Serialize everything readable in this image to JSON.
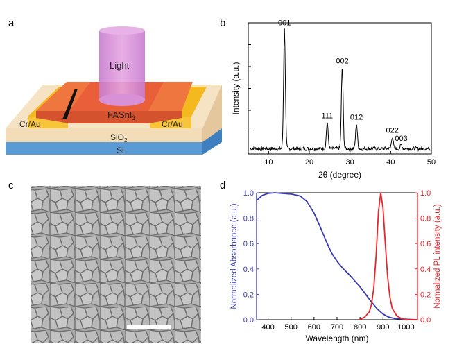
{
  "panels": {
    "a": {
      "label": "a",
      "light": "Light",
      "material_main": "FASnI",
      "material_sub": "3",
      "contact_left": "Cr/Au",
      "contact_right": "Cr/Au",
      "oxide_main": "SiO",
      "oxide_sub": "2",
      "substrate": "Si",
      "colors": {
        "light": "#d98ad6",
        "film": "#ee6f3d",
        "contact": "#f7c43a",
        "oxide": "#f3dcb8",
        "substrate": "#5b9bd5"
      }
    },
    "b": {
      "label": "b"
    },
    "c": {
      "label": "c",
      "scalebar": "scale bar"
    },
    "d": {
      "label": "d"
    }
  },
  "chart_data": [
    {
      "type": "line",
      "title": "",
      "xlabel": "2θ (degree)",
      "ylabel": "Intensity (a.u.)",
      "xlim": [
        5,
        50
      ],
      "ylim": [
        0,
        1
      ],
      "xticks": [
        10,
        20,
        30,
        40,
        50
      ],
      "yticks_labeled": false,
      "color": "#000000",
      "peaks": [
        {
          "label": "001",
          "x": 13.9,
          "y": 0.95
        },
        {
          "label": "111",
          "x": 24.4,
          "y": 0.24
        },
        {
          "label": "002",
          "x": 28.1,
          "y": 0.66
        },
        {
          "label": "012",
          "x": 31.6,
          "y": 0.23
        },
        {
          "label": "022",
          "x": 40.4,
          "y": 0.13
        },
        {
          "label": "003",
          "x": 42.6,
          "y": 0.07
        }
      ],
      "baseline": 0.04
    },
    {
      "type": "line",
      "title": "",
      "xlabel": "Wavelength (nm)",
      "ylabel": "Normalized Absorbance (a.u.)",
      "ylabel_right": "Normalized PL intensity (a.u.)",
      "xlim": [
        350,
        1050
      ],
      "ylim": [
        0,
        1
      ],
      "xticks": [
        400,
        500,
        600,
        700,
        800,
        900,
        1000
      ],
      "yticks": [
        0.0,
        0.2,
        0.4,
        0.6,
        0.8,
        1.0
      ],
      "yticklabels": [
        "0.0",
        "0.2",
        "0.4",
        "0.6",
        "0.8",
        "1.0"
      ],
      "series": [
        {
          "name": "Absorbance",
          "axis": "left",
          "color": "#3a3ab0",
          "x": [
            350,
            375,
            400,
            430,
            460,
            500,
            540,
            570,
            600,
            625,
            650,
            675,
            700,
            725,
            750,
            775,
            800,
            825,
            850,
            875,
            900,
            925,
            950,
            1000,
            1050
          ],
          "y": [
            0.94,
            0.98,
            0.995,
            1.0,
            0.995,
            0.99,
            0.975,
            0.93,
            0.84,
            0.74,
            0.63,
            0.53,
            0.46,
            0.405,
            0.36,
            0.31,
            0.26,
            0.2,
            0.14,
            0.085,
            0.045,
            0.02,
            0.01,
            0.004,
            0.0
          ]
        },
        {
          "name": "PL",
          "axis": "right",
          "color": "#e8262a",
          "x": [
            795,
            820,
            840,
            850,
            860,
            870,
            880,
            890,
            900,
            910,
            920,
            930,
            940,
            960,
            980,
            1000,
            1050
          ],
          "y": [
            0.0,
            0.02,
            0.06,
            0.12,
            0.25,
            0.5,
            0.85,
            1.0,
            0.88,
            0.6,
            0.34,
            0.18,
            0.09,
            0.03,
            0.01,
            0.0,
            0.0
          ]
        }
      ]
    }
  ]
}
